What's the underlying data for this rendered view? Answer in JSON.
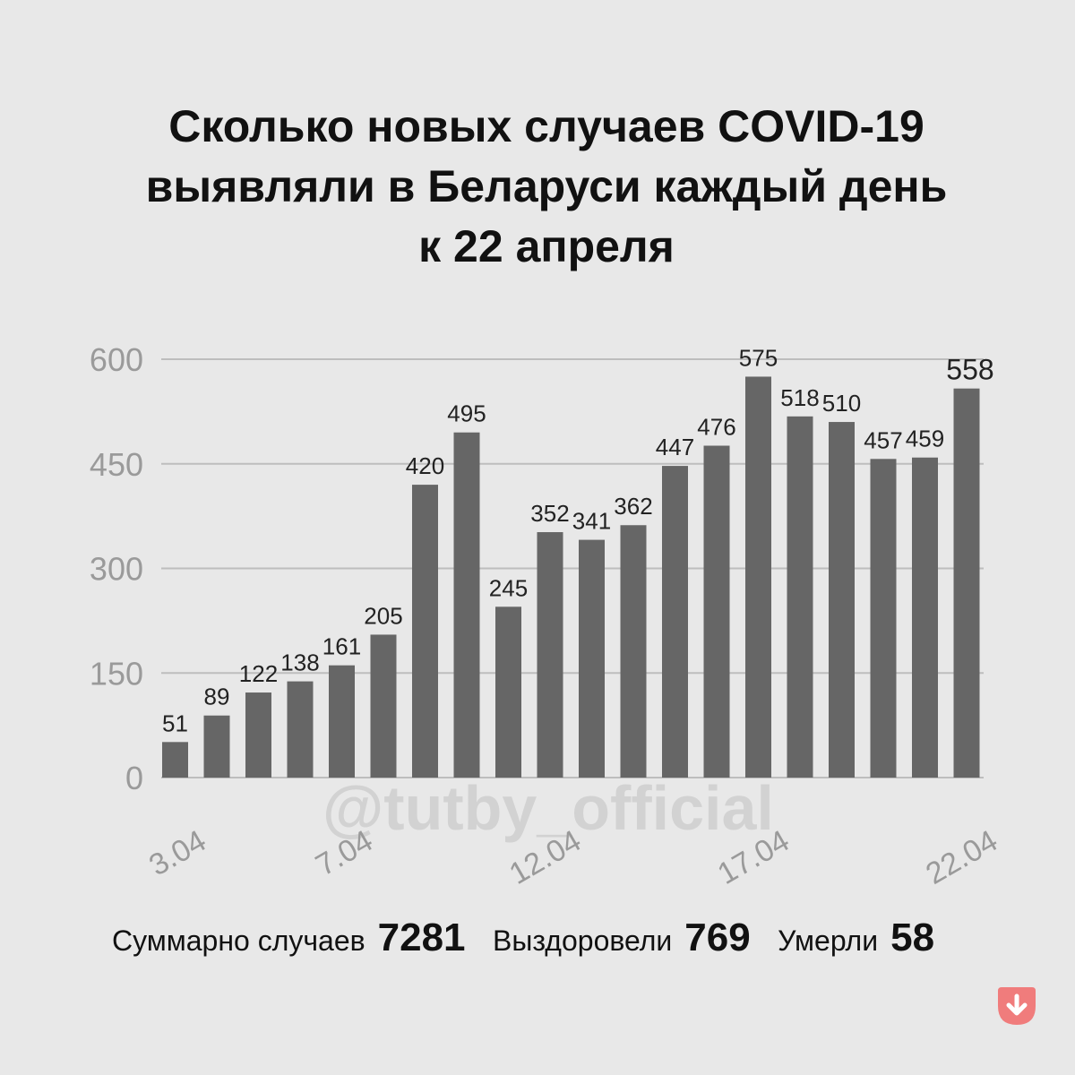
{
  "title": {
    "line1": "Сколько новых случаев COVID-19",
    "line2": "выявляли в Беларуси каждый день",
    "line3": "к 22 апреля"
  },
  "watermark": "@tutby_official",
  "stats": [
    {
      "label": "Суммарно случаев",
      "value": "7281"
    },
    {
      "label": "Выздоровели",
      "value": "769"
    },
    {
      "label": "Умерли",
      "value": "58"
    }
  ],
  "colors": {
    "bar": "#666666",
    "grid": "#bdbdbd",
    "background": "#e8e8e8",
    "logo": "#f07c7c"
  },
  "logo_icon": "arrow-down-icon",
  "chart_data": {
    "type": "bar",
    "categories": [
      "3.04",
      "4.04",
      "5.04",
      "6.04",
      "7.04",
      "8.04",
      "9.04",
      "10.04",
      "11.04",
      "12.04",
      "13.04",
      "14.04",
      "15.04",
      "16.04",
      "17.04",
      "18.04",
      "19.04",
      "20.04",
      "21.04",
      "22.04"
    ],
    "values": [
      51,
      89,
      122,
      138,
      161,
      205,
      420,
      495,
      245,
      352,
      341,
      362,
      447,
      476,
      575,
      518,
      510,
      457,
      459,
      558
    ],
    "x_tick_labels": [
      "3.04",
      "7.04",
      "12.04",
      "17.04",
      "22.04"
    ],
    "y_ticks": [
      0,
      150,
      300,
      450,
      600
    ],
    "ylim": [
      0,
      600
    ],
    "grid": true
  }
}
